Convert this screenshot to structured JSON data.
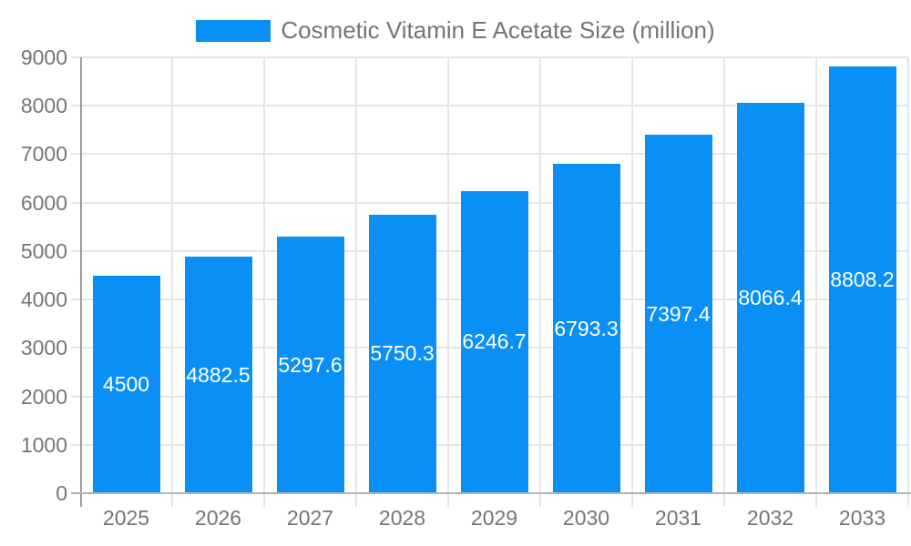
{
  "chart_data": {
    "type": "bar",
    "title": "Cosmetic Vitamin E Acetate Size (million)",
    "categories": [
      "2025",
      "2026",
      "2027",
      "2028",
      "2029",
      "2030",
      "2031",
      "2032",
      "2033"
    ],
    "values": [
      4500,
      4882.5,
      5297.6,
      5750.3,
      6246.7,
      6793.3,
      7397.4,
      8066.4,
      8808.2
    ],
    "value_labels": [
      "4500",
      "4882.5",
      "5297.6",
      "5750.3",
      "6246.7",
      "6793.3",
      "7397.4",
      "8066.4",
      "8808.2"
    ],
    "xlabel": "",
    "ylabel": "",
    "ylim": [
      0,
      9000
    ],
    "ytick_step": 1000,
    "yticks": [
      "0",
      "1000",
      "2000",
      "3000",
      "4000",
      "5000",
      "6000",
      "7000",
      "8000",
      "9000"
    ],
    "grid": true,
    "legend_position": "top",
    "colors": {
      "bar": "#0a90f5",
      "gridline": "#e6e6e6",
      "y_axis_line": "#9e9e9e",
      "x_axis_line": "#b3b3b3",
      "tick_text": "#757575",
      "legend_text": "#757575",
      "value_label_text": "#ffffff",
      "background": "#ffffff"
    }
  }
}
